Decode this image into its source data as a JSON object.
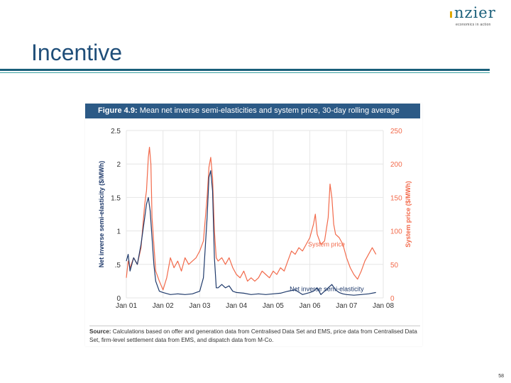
{
  "logo": {
    "name": "nzier",
    "tagline": "economics in action",
    "accent": "#e0a800",
    "color": "#1a5f7a"
  },
  "slide": {
    "title": "Incentive",
    "page_number": "58"
  },
  "figure": {
    "label": "Figure 4.9:",
    "caption": "Mean net inverse semi-elasticities and system price, 30-day rolling average",
    "source_label": "Source:",
    "source_text": "Calculations based on offer and generation data from Centralised Data Set and EMS, price data from Centralised Data Set, firm-level settlement data from EMS, and dispatch data from M-Co."
  },
  "chart_data": {
    "type": "line",
    "x_ticks": [
      "Jan 01",
      "Jan 02",
      "Jan 03",
      "Jan 04",
      "Jan 05",
      "Jan 06",
      "Jan 07",
      "Jan 08"
    ],
    "xlim": [
      2001.0,
      2008.0
    ],
    "ylabel_left": "Net inverse semi-elasticity ($/MWh)",
    "ylabel_right": "System price ($/MWh)",
    "ylim_left": [
      0,
      2.5
    ],
    "ylim_right": [
      0,
      250
    ],
    "yticks_left": [
      "0",
      ".5",
      "1",
      "1.5",
      "2",
      "2.5"
    ],
    "yticks_right": [
      "0",
      "50",
      "100",
      "150",
      "200",
      "250"
    ],
    "grid": true,
    "series": [
      {
        "name": "System price",
        "axis": "right",
        "color": "#f26a4b",
        "points": [
          [
            2001.0,
            30
          ],
          [
            2001.05,
            55
          ],
          [
            2001.1,
            45
          ],
          [
            2001.2,
            60
          ],
          [
            2001.3,
            50
          ],
          [
            2001.4,
            75
          ],
          [
            2001.5,
            140
          ],
          [
            2001.55,
            160
          ],
          [
            2001.6,
            210
          ],
          [
            2001.63,
            225
          ],
          [
            2001.67,
            200
          ],
          [
            2001.7,
            120
          ],
          [
            2001.75,
            80
          ],
          [
            2001.8,
            40
          ],
          [
            2001.9,
            25
          ],
          [
            2002.0,
            12
          ],
          [
            2002.1,
            30
          ],
          [
            2002.2,
            60
          ],
          [
            2002.3,
            45
          ],
          [
            2002.4,
            55
          ],
          [
            2002.5,
            40
          ],
          [
            2002.6,
            60
          ],
          [
            2002.7,
            50
          ],
          [
            2002.8,
            55
          ],
          [
            2002.9,
            60
          ],
          [
            2003.0,
            70
          ],
          [
            2003.1,
            85
          ],
          [
            2003.2,
            150
          ],
          [
            2003.25,
            195
          ],
          [
            2003.3,
            210
          ],
          [
            2003.35,
            180
          ],
          [
            2003.4,
            100
          ],
          [
            2003.45,
            60
          ],
          [
            2003.5,
            55
          ],
          [
            2003.6,
            60
          ],
          [
            2003.7,
            50
          ],
          [
            2003.8,
            60
          ],
          [
            2003.9,
            45
          ],
          [
            2004.0,
            35
          ],
          [
            2004.1,
            30
          ],
          [
            2004.2,
            40
          ],
          [
            2004.3,
            25
          ],
          [
            2004.4,
            30
          ],
          [
            2004.5,
            25
          ],
          [
            2004.6,
            30
          ],
          [
            2004.7,
            40
          ],
          [
            2004.8,
            35
          ],
          [
            2004.9,
            30
          ],
          [
            2005.0,
            40
          ],
          [
            2005.1,
            35
          ],
          [
            2005.2,
            45
          ],
          [
            2005.3,
            40
          ],
          [
            2005.4,
            55
          ],
          [
            2005.5,
            70
          ],
          [
            2005.6,
            65
          ],
          [
            2005.7,
            75
          ],
          [
            2005.8,
            70
          ],
          [
            2005.9,
            80
          ],
          [
            2006.0,
            90
          ],
          [
            2006.1,
            110
          ],
          [
            2006.15,
            125
          ],
          [
            2006.2,
            95
          ],
          [
            2006.3,
            80
          ],
          [
            2006.4,
            85
          ],
          [
            2006.5,
            120
          ],
          [
            2006.55,
            170
          ],
          [
            2006.6,
            150
          ],
          [
            2006.65,
            110
          ],
          [
            2006.7,
            95
          ],
          [
            2006.8,
            90
          ],
          [
            2006.9,
            80
          ],
          [
            2007.0,
            60
          ],
          [
            2007.1,
            45
          ],
          [
            2007.2,
            35
          ],
          [
            2007.3,
            28
          ],
          [
            2007.4,
            40
          ],
          [
            2007.5,
            55
          ],
          [
            2007.6,
            65
          ],
          [
            2007.7,
            75
          ],
          [
            2007.8,
            65
          ]
        ]
      },
      {
        "name": "Net inverse semi-elasticity",
        "axis": "left",
        "color": "#1f3a6b",
        "points": [
          [
            2001.0,
            0.55
          ],
          [
            2001.05,
            0.65
          ],
          [
            2001.1,
            0.4
          ],
          [
            2001.2,
            0.6
          ],
          [
            2001.3,
            0.5
          ],
          [
            2001.4,
            0.8
          ],
          [
            2001.5,
            1.2
          ],
          [
            2001.55,
            1.4
          ],
          [
            2001.6,
            1.5
          ],
          [
            2001.65,
            1.3
          ],
          [
            2001.7,
            0.9
          ],
          [
            2001.75,
            0.5
          ],
          [
            2001.8,
            0.25
          ],
          [
            2001.9,
            0.1
          ],
          [
            2002.0,
            0.08
          ],
          [
            2002.2,
            0.05
          ],
          [
            2002.4,
            0.06
          ],
          [
            2002.6,
            0.05
          ],
          [
            2002.8,
            0.06
          ],
          [
            2003.0,
            0.1
          ],
          [
            2003.1,
            0.3
          ],
          [
            2003.2,
            1.2
          ],
          [
            2003.25,
            1.8
          ],
          [
            2003.3,
            1.9
          ],
          [
            2003.35,
            1.6
          ],
          [
            2003.4,
            0.6
          ],
          [
            2003.45,
            0.15
          ],
          [
            2003.5,
            0.15
          ],
          [
            2003.6,
            0.2
          ],
          [
            2003.7,
            0.15
          ],
          [
            2003.8,
            0.18
          ],
          [
            2003.9,
            0.1
          ],
          [
            2004.0,
            0.08
          ],
          [
            2004.2,
            0.07
          ],
          [
            2004.4,
            0.05
          ],
          [
            2004.6,
            0.06
          ],
          [
            2004.8,
            0.05
          ],
          [
            2005.0,
            0.06
          ],
          [
            2005.2,
            0.07
          ],
          [
            2005.4,
            0.1
          ],
          [
            2005.6,
            0.12
          ],
          [
            2005.8,
            0.05
          ],
          [
            2006.0,
            0.08
          ],
          [
            2006.1,
            0.1
          ],
          [
            2006.2,
            0.15
          ],
          [
            2006.3,
            0.05
          ],
          [
            2006.4,
            0.1
          ],
          [
            2006.5,
            0.15
          ],
          [
            2006.6,
            0.2
          ],
          [
            2006.7,
            0.12
          ],
          [
            2006.8,
            0.08
          ],
          [
            2006.9,
            0.06
          ],
          [
            2007.0,
            0.05
          ],
          [
            2007.2,
            0.04
          ],
          [
            2007.4,
            0.05
          ],
          [
            2007.6,
            0.06
          ],
          [
            2007.8,
            0.08
          ]
        ]
      }
    ],
    "annotations": [
      {
        "text": "System price",
        "x": 2005.95,
        "y": 77,
        "axis": "right",
        "color": "#f26a4b"
      },
      {
        "text": "Net inverse semi-elasticity",
        "x": 2005.45,
        "y": 0.1,
        "axis": "left",
        "color": "#1f3a6b"
      }
    ]
  }
}
